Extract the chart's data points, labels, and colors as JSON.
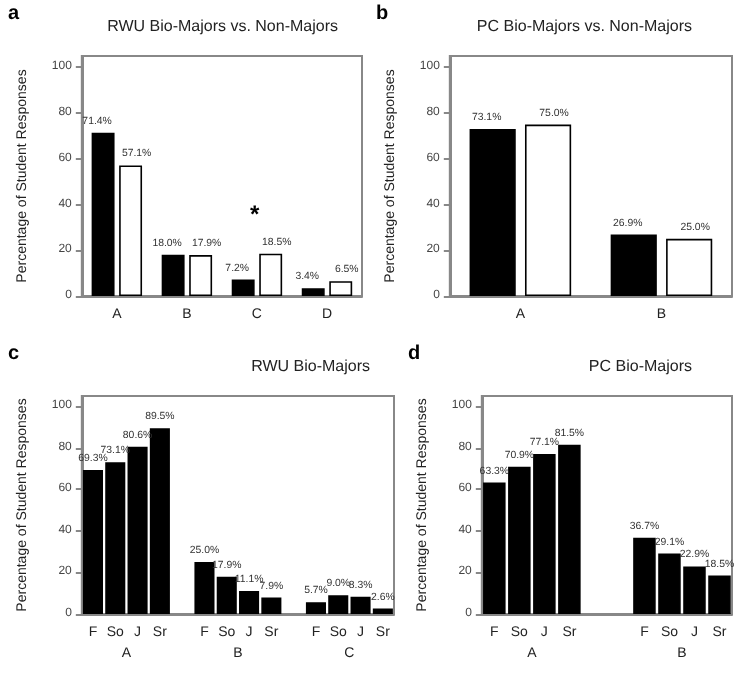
{
  "chart_data": [
    {
      "type": "bar",
      "title": "RWU Bio-Majors vs. Non-Majors",
      "ylabel": "Percentage of Student Responses",
      "categories": [
        "A",
        "B",
        "C",
        "D"
      ],
      "series": [
        {
          "color": "#000000",
          "values": [
            71.4,
            18.0,
            7.2,
            3.4
          ],
          "value_labels": [
            "71.4%",
            "18.0%",
            "7.2%",
            "3.4%"
          ]
        },
        {
          "color": "#ffffff",
          "values": [
            57.1,
            17.9,
            18.5,
            6.5
          ],
          "value_labels": [
            "57.1%",
            "17.9%",
            "18.5%",
            "6.5%"
          ]
        }
      ],
      "ylim": [
        0,
        105
      ],
      "yticks": [
        0,
        20,
        40,
        60,
        80,
        100
      ],
      "annotations": [
        "a",
        "*"
      ]
    },
    {
      "type": "bar",
      "title": "PC Bio-Majors vs. Non-Majors",
      "ylabel": "Percentage of Student Responses",
      "categories": [
        "A",
        "B"
      ],
      "series": [
        {
          "color": "#000000",
          "values": [
            73.1,
            26.9
          ],
          "value_labels": [
            "73.1%",
            "26.9%"
          ]
        },
        {
          "color": "#ffffff",
          "values": [
            75.0,
            25.0
          ],
          "value_labels": [
            "75.0%",
            "25.0%"
          ]
        }
      ],
      "ylim": [
        0,
        105
      ],
      "yticks": [
        0,
        20,
        40,
        60,
        80,
        100
      ],
      "annotations": [
        "b"
      ]
    },
    {
      "type": "bar",
      "title": "RWU Bio-Majors",
      "ylabel": "Percentage of Student Responses",
      "categories": [
        "F",
        "So",
        "J",
        "Sr",
        null,
        "F",
        "So",
        "J",
        "Sr",
        null,
        "F",
        "So",
        "J",
        "Sr"
      ],
      "series": [
        {
          "color": "#000000",
          "values": [
            69.3,
            73.1,
            80.6,
            89.5,
            null,
            25.0,
            17.9,
            11.1,
            7.9,
            null,
            5.7,
            9.0,
            8.3,
            2.6
          ],
          "value_labels": [
            "69.3%",
            "73.1%",
            "80.6%",
            "89.5%",
            null,
            "25.0%",
            "17.9%",
            "11.1%",
            "7.9%",
            null,
            "5.7%",
            "9.0%",
            "8.3%",
            "2.6%"
          ]
        }
      ],
      "ylim": [
        0,
        105
      ],
      "yticks": [
        0,
        20,
        40,
        60,
        80,
        100
      ],
      "annotations": [
        "c",
        "A",
        "B",
        "C"
      ]
    },
    {
      "type": "bar",
      "title": "PC Bio-Majors",
      "ylabel": "Percentage of Student Responses",
      "categories": [
        "F",
        "So",
        "J",
        "Sr",
        null,
        null,
        "F",
        "So",
        "J",
        "Sr"
      ],
      "series": [
        {
          "color": "#000000",
          "values": [
            63.3,
            70.9,
            77.1,
            81.5,
            null,
            null,
            36.7,
            29.1,
            22.9,
            18.5
          ],
          "value_labels": [
            "63.3%",
            "70.9%",
            "77.1%",
            "81.5%",
            null,
            null,
            "36.7%",
            "29.1%",
            "22.9%",
            "18.5%"
          ]
        }
      ],
      "ylim": [
        0,
        105
      ],
      "yticks": [
        0,
        20,
        40,
        60,
        80,
        100
      ],
      "annotations": [
        "d",
        "A",
        "B"
      ]
    }
  ]
}
